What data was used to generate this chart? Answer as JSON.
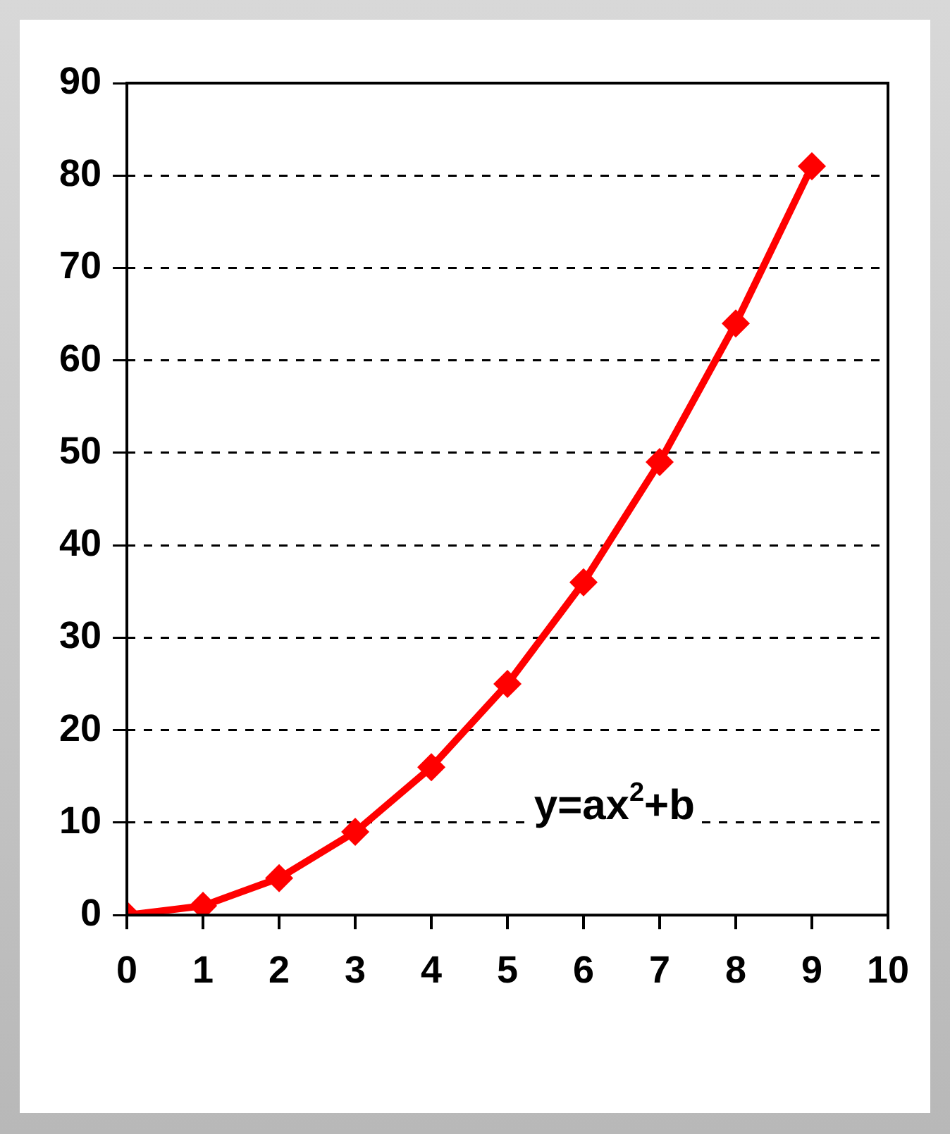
{
  "chart_data": {
    "type": "line",
    "x": [
      0,
      1,
      2,
      3,
      4,
      5,
      6,
      7,
      8,
      9
    ],
    "values": [
      0,
      1,
      4,
      9,
      16,
      25,
      36,
      49,
      64,
      81
    ],
    "color": "#ff0000",
    "marker": "diamond",
    "line_style": "solid",
    "xlim": [
      0,
      10
    ],
    "xticks": [
      0,
      1,
      2,
      3,
      4,
      5,
      6,
      7,
      8,
      9,
      10
    ],
    "ylim": [
      0,
      90
    ],
    "yticks": [
      0,
      10,
      20,
      30,
      40,
      50,
      60,
      70,
      80,
      90
    ],
    "grid": "y",
    "legend": false,
    "annotations": [
      "y=ax$^{2}$+b"
    ]
  }
}
